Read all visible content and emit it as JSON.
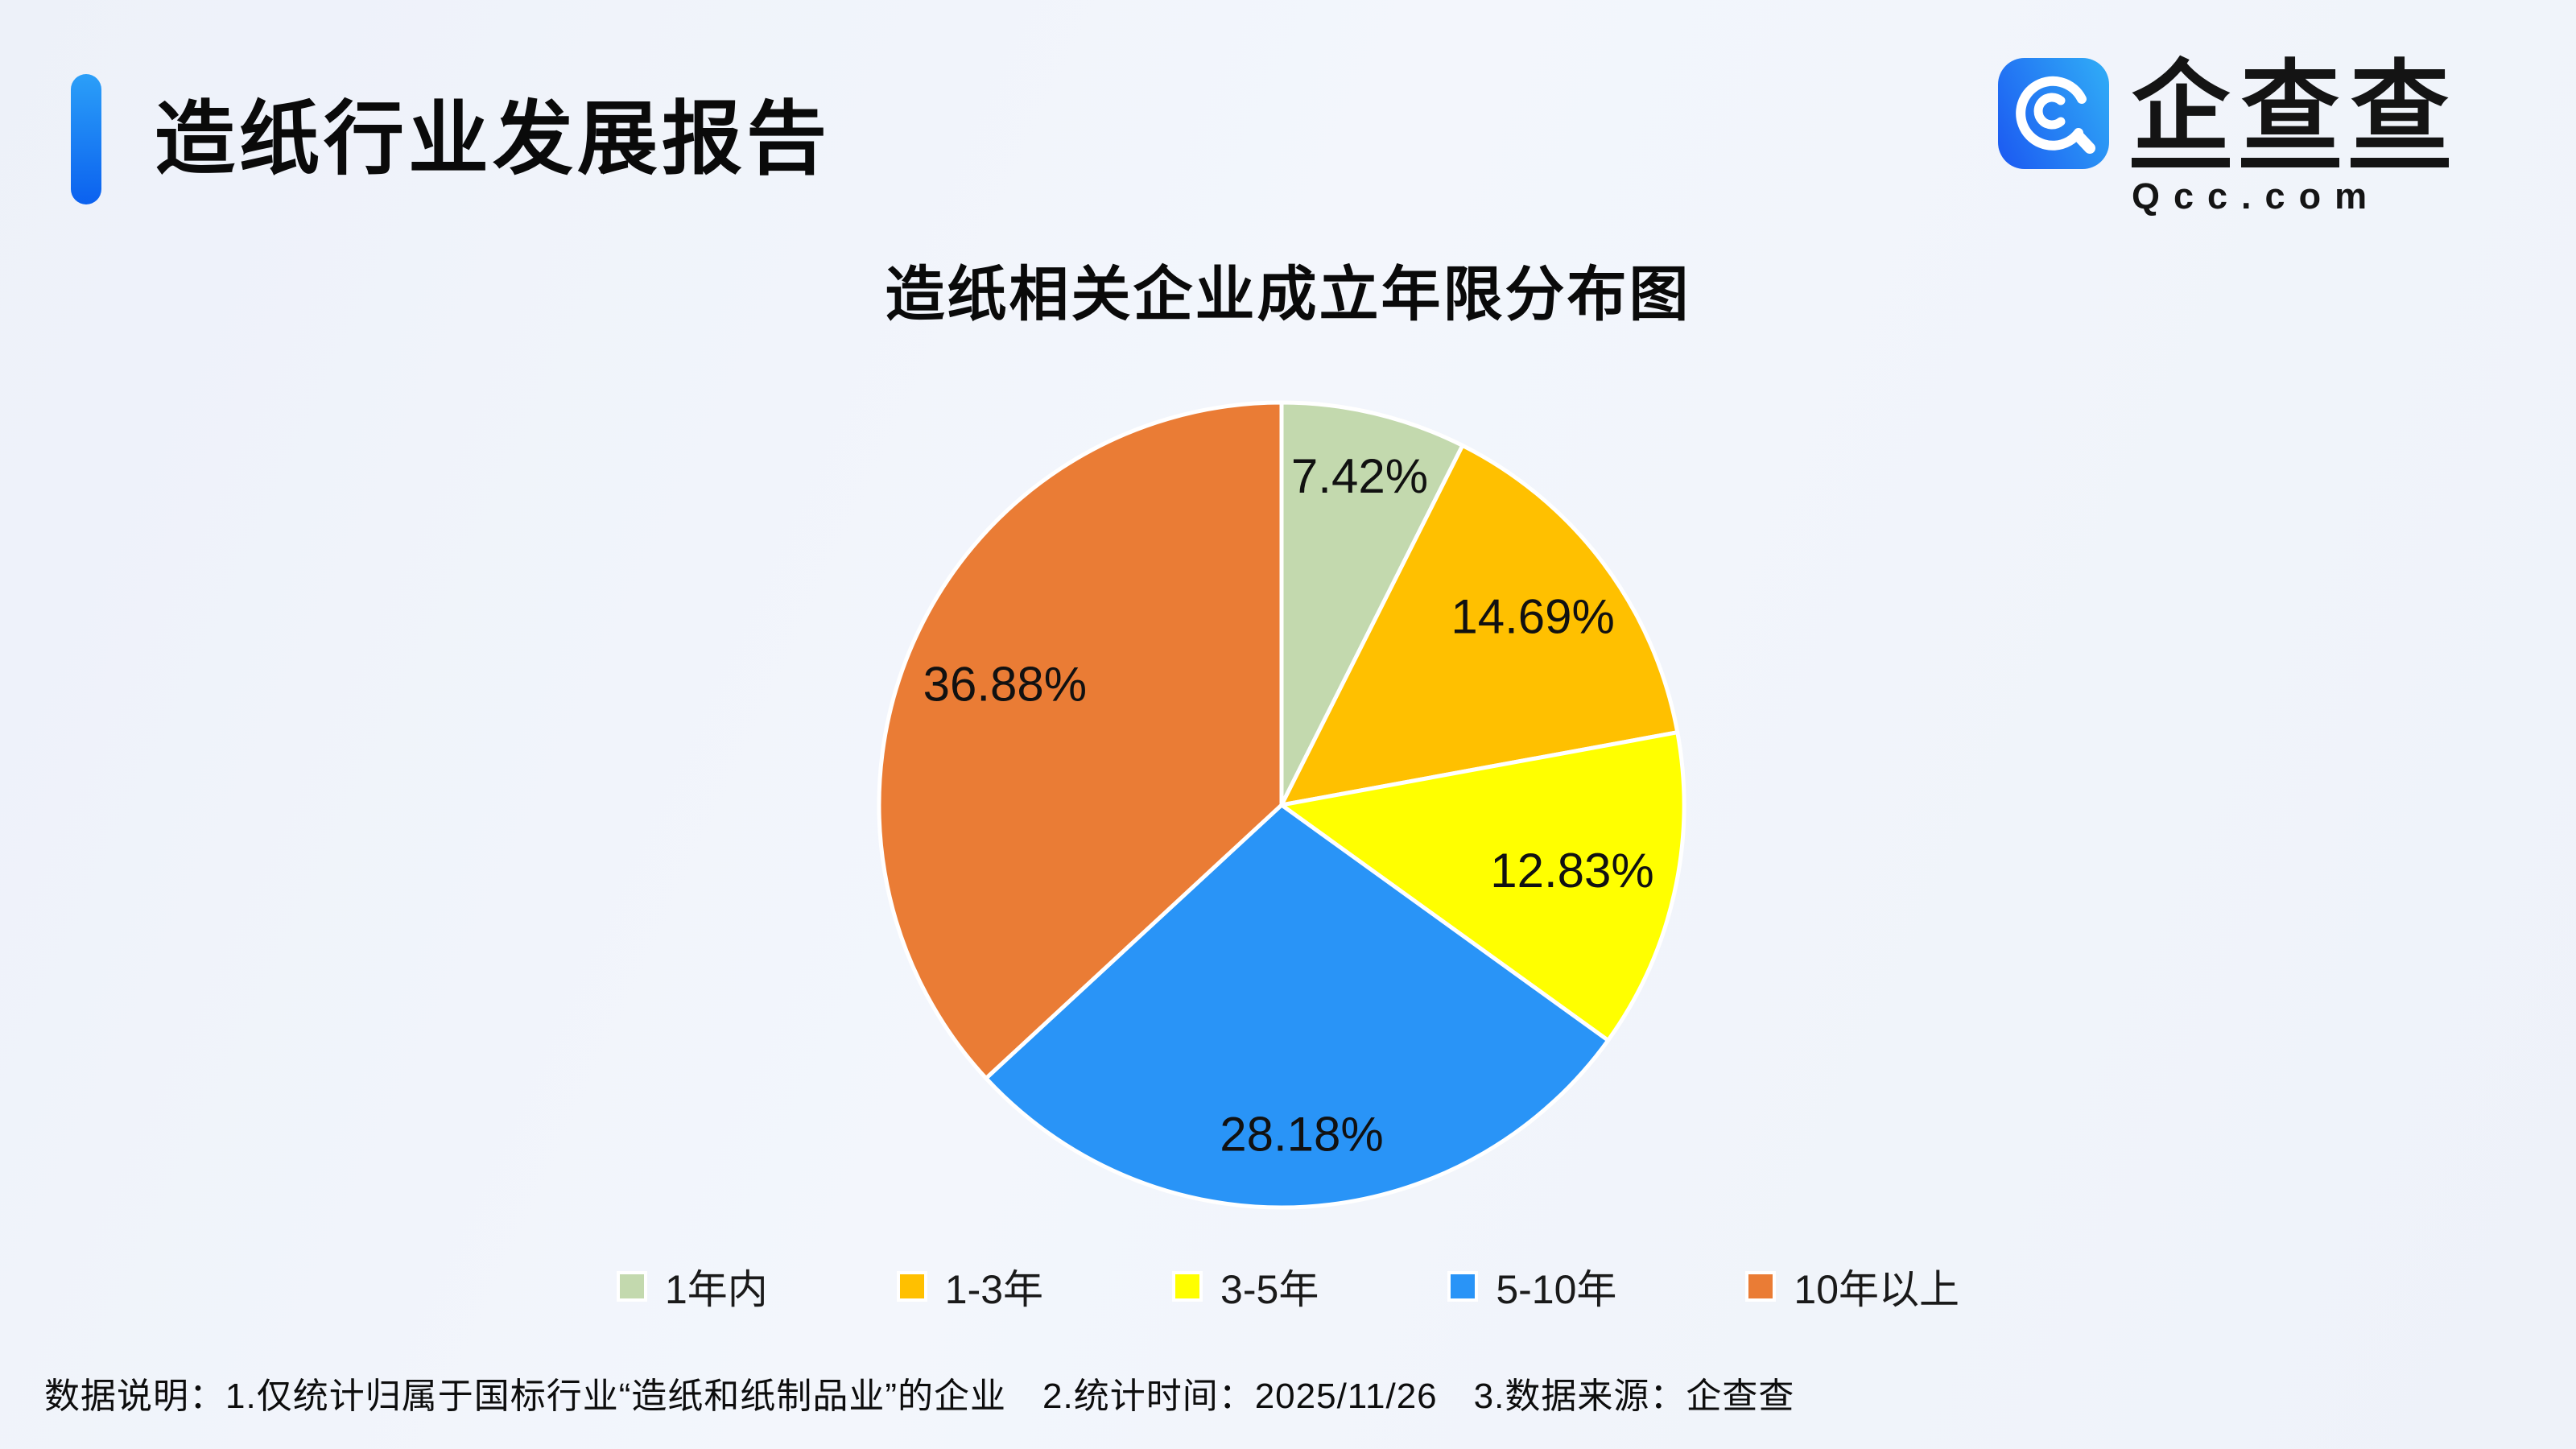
{
  "header": {
    "title": "造纸行业发展报告"
  },
  "brand": {
    "name_chars": [
      "企",
      "查",
      "查"
    ],
    "domain": "Qcc.com",
    "icon": "qcc-magnifier-icon",
    "icon_color_start": "#1d5ff2",
    "icon_color_end": "#2fa7f6"
  },
  "chart_data": {
    "type": "pie",
    "title": "造纸相关企业成立年限分布图",
    "categories": [
      "1年内",
      "1-3年",
      "3-5年",
      "5-10年",
      "10年以上"
    ],
    "values": [
      7.42,
      14.69,
      12.83,
      28.18,
      36.88
    ],
    "value_labels": [
      "7.42%",
      "14.69%",
      "12.83%",
      "28.18%",
      "36.88%"
    ],
    "colors": [
      "#c3d9ae",
      "#ffc000",
      "#ffff00",
      "#2994f7",
      "#ea7c35"
    ],
    "start_angle": "top",
    "direction": "clockwise",
    "legend_position": "bottom",
    "label_color": "#111111"
  },
  "footer": {
    "note": "数据说明：1.仅统计归属于国标行业“造纸和纸制品业”的企业　2.统计时间：2025/11/26　3.数据来源：企查查"
  },
  "theme": {
    "accent_blue": "#0b61ef",
    "background": "#f0f4fa"
  }
}
